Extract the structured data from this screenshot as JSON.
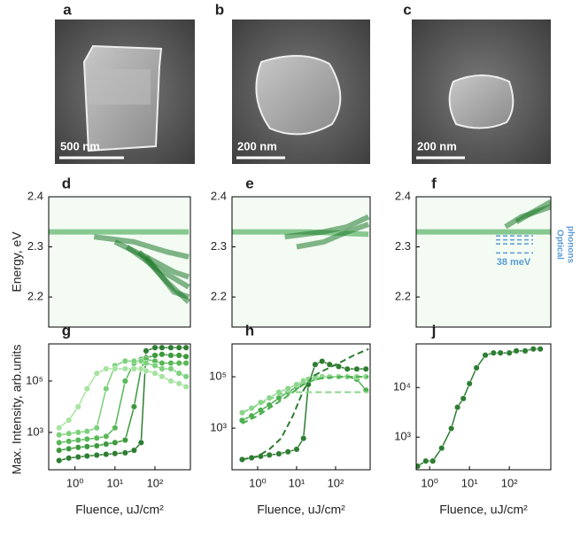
{
  "images": [
    {
      "label": "a",
      "scale_bar": "500 nm"
    },
    {
      "label": "b",
      "scale_bar": "200 nm"
    },
    {
      "label": "c",
      "scale_bar": "200 nm"
    }
  ],
  "chart_data": [
    {
      "type": "heatmap",
      "label": "d",
      "ylabel": "Energy, eV",
      "xlog": true,
      "xlim": [
        0.22,
        770
      ],
      "ylim": [
        2.14,
        2.4
      ],
      "yticks": [
        2.2,
        2.3,
        2.4
      ],
      "series": [
        {
          "color": "#2e9e3e",
          "x": [
            0.22,
            5,
            20,
            100,
            700
          ],
          "values": [
            2.33,
            2.33,
            2.33,
            2.33,
            2.33
          ]
        },
        {
          "color": "#1f7a2c",
          "x": [
            3,
            30,
            200,
            700
          ],
          "values": [
            2.32,
            2.31,
            2.29,
            2.28
          ]
        },
        {
          "color": "#1f7a2c",
          "x": [
            10,
            60,
            300,
            700
          ],
          "values": [
            2.31,
            2.28,
            2.25,
            2.24
          ]
        },
        {
          "color": "#1f7a2c",
          "x": [
            20,
            100,
            700
          ],
          "values": [
            2.3,
            2.26,
            2.22
          ]
        },
        {
          "color": "#1f7a2c",
          "x": [
            40,
            200,
            700
          ],
          "values": [
            2.29,
            2.23,
            2.19
          ]
        },
        {
          "color": "#1f7a2c",
          "x": [
            60,
            300,
            700
          ],
          "values": [
            2.28,
            2.21,
            2.2
          ]
        }
      ]
    },
    {
      "type": "heatmap",
      "label": "e",
      "xlog": true,
      "xlim": [
        0.22,
        770
      ],
      "ylim": [
        2.14,
        2.4
      ],
      "yticks": [
        2.2,
        2.3,
        2.4
      ],
      "series": [
        {
          "color": "#2e9e3e",
          "x": [
            0.22,
            20,
            700
          ],
          "values": [
            2.33,
            2.33,
            2.325
          ]
        },
        {
          "color": "#1f7a2c",
          "x": [
            5,
            50,
            200,
            700
          ],
          "values": [
            2.32,
            2.33,
            2.34,
            2.36
          ]
        },
        {
          "color": "#1f7a2c",
          "x": [
            10,
            50,
            200,
            700
          ],
          "values": [
            2.3,
            2.31,
            2.33,
            2.345
          ]
        }
      ]
    },
    {
      "type": "heatmap",
      "label": "f",
      "xlog": true,
      "xlim": [
        0.46,
        1100
      ],
      "ylim": [
        2.14,
        2.4
      ],
      "yticks": [
        2.2,
        2.3,
        2.4
      ],
      "series": [
        {
          "color": "#2e9e3e",
          "x": [
            0.46,
            30,
            1100
          ],
          "values": [
            2.33,
            2.33,
            2.33
          ]
        },
        {
          "color": "#1f7a2c",
          "x": [
            80,
            200,
            1100
          ],
          "values": [
            2.34,
            2.36,
            2.38
          ]
        },
        {
          "color": "#1f7a2c",
          "x": [
            150,
            400,
            1100
          ],
          "values": [
            2.35,
            2.37,
            2.39
          ]
        }
      ],
      "phonon_lines": [
        2.322,
        2.314,
        2.306,
        2.288
      ],
      "annotations": [
        "Optical",
        "phonons",
        "38 meV"
      ]
    },
    {
      "type": "line",
      "label": "g",
      "ylabel": "Max. Intensity, arb.units",
      "xlabel": "Fluence, uJ/cm²",
      "xlog": true,
      "ylog": true,
      "xlim": [
        0.22,
        770
      ],
      "ylim": [
        35,
        2800000
      ],
      "xticks": [
        {
          "value": 1,
          "label": "10⁰"
        },
        {
          "value": 10,
          "label": "10¹"
        },
        {
          "value": 100,
          "label": "10²"
        }
      ],
      "yticks": [
        {
          "value": 1000,
          "label": "10³"
        },
        {
          "value": 100000,
          "label": "10⁵"
        }
      ],
      "series": [
        {
          "color": "#2e7d32",
          "x": [
            0.4,
            0.7,
            1.2,
            2,
            3.5,
            6,
            10,
            18,
            30,
            45,
            60,
            100,
            150,
            250,
            400,
            600
          ],
          "values": [
            80,
            100,
            110,
            120,
            130,
            140,
            150,
            160,
            200,
            400,
            1500000,
            2000000,
            2000000,
            2000000,
            2000000,
            2000000
          ]
        },
        {
          "color": "#3c9a3c",
          "x": [
            0.4,
            0.7,
            1.2,
            2,
            3.5,
            6,
            10,
            18,
            30,
            45,
            60,
            100,
            150,
            250,
            400,
            600
          ],
          "values": [
            200,
            230,
            260,
            280,
            300,
            350,
            400,
            500,
            10000,
            300000,
            800000,
            1000000,
            1100000,
            1000000,
            1000000,
            900000
          ]
        },
        {
          "color": "#58b858",
          "x": [
            0.4,
            0.7,
            1.2,
            2,
            3.5,
            6,
            10,
            18,
            30,
            45,
            60,
            100,
            150,
            250,
            400,
            600
          ],
          "values": [
            400,
            450,
            500,
            550,
            600,
            700,
            1500,
            100000,
            500000,
            700000,
            700000,
            600000,
            500000,
            500000,
            500000,
            500000
          ]
        },
        {
          "color": "#7bd17b",
          "x": [
            0.4,
            0.7,
            1.2,
            2,
            3.5,
            6,
            10,
            18,
            30,
            45,
            60,
            100,
            150,
            250,
            400,
            600
          ],
          "values": [
            800,
            900,
            1000,
            1100,
            1500,
            50000,
            400000,
            600000,
            600000,
            600000,
            500000,
            400000,
            300000,
            300000,
            200000,
            150000
          ]
        },
        {
          "color": "#a6e3a0",
          "x": [
            0.4,
            0.7,
            1.2,
            2,
            3.5,
            6,
            10,
            18,
            30,
            45,
            60,
            100,
            150,
            250,
            400,
            600
          ],
          "values": [
            1500,
            3000,
            10000,
            50000,
            200000,
            300000,
            300000,
            300000,
            300000,
            300000,
            250000,
            200000,
            150000,
            100000,
            80000,
            60000
          ]
        }
      ]
    },
    {
      "type": "line",
      "label": "h",
      "xlabel": "Fluence, uJ/cm²",
      "xlog": true,
      "ylog": true,
      "xlim": [
        0.22,
        770
      ],
      "ylim": [
        24,
        1900000
      ],
      "xticks": [
        {
          "value": 1,
          "label": "10⁰"
        },
        {
          "value": 10,
          "label": "10¹"
        },
        {
          "value": 100,
          "label": "10²"
        }
      ],
      "yticks": [
        {
          "value": 1000,
          "label": "10³"
        },
        {
          "value": 100000,
          "label": "10⁵"
        }
      ],
      "series": [
        {
          "color": "#2e7d32",
          "x": [
            0.4,
            0.7,
            1.2,
            2,
            3.5,
            6,
            10,
            15,
            20,
            30,
            45,
            70,
            120,
            200,
            350,
            600
          ],
          "values": [
            60,
            70,
            80,
            90,
            100,
            120,
            150,
            400,
            50000,
            300000,
            400000,
            300000,
            250000,
            200000,
            200000,
            200000
          ]
        },
        {
          "color": "#4caf50",
          "x": [
            0.4,
            0.7,
            1.2,
            2,
            3.5,
            6,
            10,
            15,
            20,
            30,
            45,
            70,
            120,
            200,
            350,
            600
          ],
          "values": [
            2000,
            3000,
            5000,
            8000,
            15000,
            25000,
            40000,
            60000,
            80000,
            100000,
            100000,
            100000,
            100000,
            100000,
            80000,
            30000
          ]
        },
        {
          "color": "#8bd68b",
          "x": [
            0.4,
            0.7,
            1.2,
            2,
            3.5,
            6,
            10,
            15,
            20,
            30,
            45,
            70,
            120,
            200,
            350,
            600
          ],
          "values": [
            4000,
            6000,
            10000,
            15000,
            25000,
            35000,
            50000,
            70000,
            80000,
            90000,
            100000,
            100000,
            100000,
            100000,
            100000,
            100000
          ]
        },
        {
          "color": "#2e7d32",
          "dash": true,
          "x": [
            0.4,
            1,
            2,
            4,
            8,
            15,
            25,
            40,
            80,
            150,
            300,
            700
          ],
          "values": [
            60,
            80,
            150,
            400,
            3000,
            30000,
            100000,
            150000,
            250000,
            400000,
            700000,
            1200000
          ]
        },
        {
          "color": "#4caf50",
          "dash": true,
          "x": [
            0.4,
            1,
            2,
            4,
            8,
            15,
            25,
            40,
            80,
            150,
            300,
            700
          ],
          "values": [
            1500,
            3000,
            6000,
            12000,
            25000,
            50000,
            70000,
            85000,
            95000,
            100000,
            100000,
            100000
          ]
        },
        {
          "color": "#8bd68b",
          "dash": true,
          "x": [
            0.4,
            5,
            700
          ],
          "values": [
            4000,
            25000,
            25000
          ]
        }
      ]
    },
    {
      "type": "line",
      "label": "j",
      "xlabel": "Fluence, uJ/cm²",
      "xlog": true,
      "ylog": true,
      "xlim": [
        0.46,
        1100
      ],
      "ylim": [
        220,
        76000
      ],
      "xticks": [
        {
          "value": 1,
          "label": "10⁰"
        },
        {
          "value": 10,
          "label": "10¹"
        },
        {
          "value": 100,
          "label": "10²"
        }
      ],
      "yticks": [
        {
          "value": 1000,
          "label": "10³"
        },
        {
          "value": 10000,
          "label": "10⁴"
        }
      ],
      "series": [
        {
          "color": "#2e7d32",
          "x": [
            0.5,
            0.8,
            1.2,
            2,
            3.5,
            5,
            7,
            10,
            15,
            25,
            40,
            60,
            100,
            150,
            250,
            400,
            600
          ],
          "values": [
            260,
            330,
            330,
            600,
            1500,
            4000,
            6000,
            12000,
            25000,
            45000,
            50000,
            50000,
            50000,
            55000,
            55000,
            60000,
            60000
          ]
        }
      ]
    }
  ]
}
